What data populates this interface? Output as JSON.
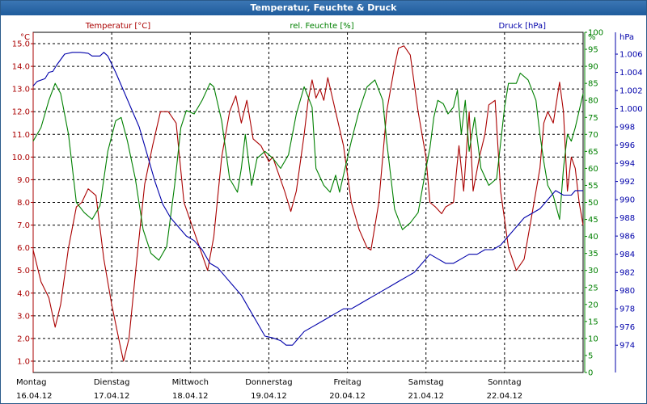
{
  "window": {
    "title": "Temperatur, Feuchte & Druck"
  },
  "chart_data": {
    "type": "line",
    "x_categories": [
      {
        "day": "Montag",
        "date": "16.04.12"
      },
      {
        "day": "Dienstag",
        "date": "17.04.12"
      },
      {
        "day": "Mittwoch",
        "date": "18.04.12"
      },
      {
        "day": "Donnerstag",
        "date": "19.04.12"
      },
      {
        "day": "Freitag",
        "date": "20.04.12"
      },
      {
        "day": "Samstag",
        "date": "21.04.12"
      },
      {
        "day": "Sonntag",
        "date": "22.04.12"
      }
    ],
    "x_range_days": [
      0,
      7
    ],
    "grid": true,
    "axes": {
      "temperature": {
        "unit": "°C",
        "min": 0.5,
        "max": 15.5,
        "ticks": [
          "1.0",
          "2.0",
          "3.0",
          "4.0",
          "5.0",
          "6.0",
          "7.0",
          "8.0",
          "9.0",
          "10.0",
          "11.0",
          "12.0",
          "13.0",
          "14.0",
          "15.0"
        ]
      },
      "humidity": {
        "unit": "%",
        "min": 0,
        "max": 100,
        "ticks": [
          "0",
          "5",
          "10",
          "15",
          "20",
          "25",
          "30",
          "35",
          "40",
          "45",
          "50",
          "55",
          "60",
          "65",
          "70",
          "75",
          "80",
          "85",
          "90",
          "95",
          "100"
        ]
      },
      "pressure": {
        "unit": "hPa",
        "min": 971.0,
        "max": 1008.4,
        "ticks": [
          "974",
          "976",
          "978",
          "980",
          "982",
          "984",
          "986",
          "988",
          "990",
          "992",
          "994",
          "996",
          "998",
          "1.000",
          "1.002",
          "1.004",
          "1.006"
        ]
      }
    },
    "series": [
      {
        "name": "Temperatur [°C]",
        "axis": "temperature",
        "color": "#aa0000",
        "points": [
          [
            0,
            5.9
          ],
          [
            0.1,
            4.5
          ],
          [
            0.2,
            3.8
          ],
          [
            0.28,
            2.5
          ],
          [
            0.35,
            3.5
          ],
          [
            0.45,
            6.0
          ],
          [
            0.55,
            7.8
          ],
          [
            0.62,
            8.0
          ],
          [
            0.7,
            8.6
          ],
          [
            0.8,
            8.3
          ],
          [
            0.9,
            5.5
          ],
          [
            1.0,
            3.5
          ],
          [
            1.1,
            1.8
          ],
          [
            1.15,
            1.0
          ],
          [
            1.22,
            2.0
          ],
          [
            1.32,
            5.5
          ],
          [
            1.42,
            8.8
          ],
          [
            1.52,
            10.5
          ],
          [
            1.62,
            12.0
          ],
          [
            1.72,
            12.0
          ],
          [
            1.82,
            11.5
          ],
          [
            1.92,
            8.0
          ],
          [
            2.02,
            7.0
          ],
          [
            2.12,
            6.0
          ],
          [
            2.22,
            5.0
          ],
          [
            2.3,
            6.5
          ],
          [
            2.4,
            10.0
          ],
          [
            2.5,
            12.0
          ],
          [
            2.58,
            12.7
          ],
          [
            2.65,
            11.5
          ],
          [
            2.72,
            12.5
          ],
          [
            2.8,
            10.8
          ],
          [
            2.9,
            10.5
          ],
          [
            3.0,
            9.8
          ],
          [
            3.05,
            10.0
          ],
          [
            3.1,
            9.5
          ],
          [
            3.2,
            8.5
          ],
          [
            3.28,
            7.6
          ],
          [
            3.35,
            8.5
          ],
          [
            3.45,
            11.0
          ],
          [
            3.5,
            12.5
          ],
          [
            3.55,
            13.4
          ],
          [
            3.6,
            12.6
          ],
          [
            3.65,
            13.0
          ],
          [
            3.7,
            12.5
          ],
          [
            3.75,
            13.5
          ],
          [
            3.85,
            12.0
          ],
          [
            3.95,
            10.5
          ],
          [
            4.05,
            8.0
          ],
          [
            4.15,
            6.8
          ],
          [
            4.25,
            6.0
          ],
          [
            4.3,
            5.9
          ],
          [
            4.4,
            8.0
          ],
          [
            4.5,
            12.0
          ],
          [
            4.6,
            14.0
          ],
          [
            4.65,
            14.8
          ],
          [
            4.72,
            14.9
          ],
          [
            4.8,
            14.5
          ],
          [
            4.9,
            12.0
          ],
          [
            5.0,
            10.0
          ],
          [
            5.05,
            8.0
          ],
          [
            5.12,
            7.8
          ],
          [
            5.2,
            7.5
          ],
          [
            5.25,
            7.8
          ],
          [
            5.35,
            8.0
          ],
          [
            5.42,
            10.5
          ],
          [
            5.48,
            8.5
          ],
          [
            5.55,
            12.0
          ],
          [
            5.6,
            8.5
          ],
          [
            5.68,
            10.0
          ],
          [
            5.75,
            11.0
          ],
          [
            5.8,
            12.3
          ],
          [
            5.88,
            12.5
          ],
          [
            5.95,
            8.5
          ],
          [
            6.05,
            6.0
          ],
          [
            6.15,
            5.0
          ],
          [
            6.25,
            5.5
          ],
          [
            6.35,
            7.5
          ],
          [
            6.45,
            9.5
          ],
          [
            6.5,
            11.5
          ],
          [
            6.55,
            12.0
          ],
          [
            6.62,
            11.5
          ],
          [
            6.7,
            13.3
          ],
          [
            6.75,
            12.0
          ],
          [
            6.8,
            8.5
          ],
          [
            6.85,
            10.0
          ],
          [
            6.9,
            9.5
          ],
          [
            6.95,
            8.0
          ],
          [
            7.0,
            7.0
          ]
        ]
      },
      {
        "name": "rel. Feuchte [%]",
        "axis": "humidity",
        "color": "#008000",
        "points": [
          [
            0,
            68
          ],
          [
            0.1,
            72
          ],
          [
            0.2,
            80
          ],
          [
            0.28,
            85
          ],
          [
            0.35,
            82
          ],
          [
            0.45,
            70
          ],
          [
            0.55,
            50
          ],
          [
            0.65,
            47
          ],
          [
            0.75,
            45
          ],
          [
            0.85,
            49
          ],
          [
            0.95,
            65
          ],
          [
            1.05,
            74
          ],
          [
            1.12,
            75
          ],
          [
            1.2,
            68
          ],
          [
            1.3,
            57
          ],
          [
            1.4,
            42
          ],
          [
            1.5,
            35
          ],
          [
            1.6,
            33
          ],
          [
            1.7,
            37
          ],
          [
            1.8,
            55
          ],
          [
            1.88,
            72
          ],
          [
            1.95,
            77
          ],
          [
            2.05,
            76
          ],
          [
            2.15,
            80
          ],
          [
            2.25,
            85
          ],
          [
            2.3,
            84
          ],
          [
            2.4,
            74
          ],
          [
            2.5,
            57
          ],
          [
            2.6,
            53
          ],
          [
            2.65,
            60
          ],
          [
            2.7,
            70
          ],
          [
            2.78,
            55
          ],
          [
            2.85,
            63
          ],
          [
            2.95,
            65
          ],
          [
            3.05,
            63
          ],
          [
            3.15,
            60
          ],
          [
            3.25,
            64
          ],
          [
            3.35,
            76
          ],
          [
            3.45,
            84
          ],
          [
            3.55,
            78
          ],
          [
            3.6,
            60
          ],
          [
            3.7,
            55
          ],
          [
            3.78,
            53
          ],
          [
            3.85,
            58
          ],
          [
            3.9,
            53
          ],
          [
            3.95,
            58
          ],
          [
            4.05,
            68
          ],
          [
            4.15,
            77
          ],
          [
            4.25,
            84
          ],
          [
            4.35,
            86
          ],
          [
            4.45,
            80
          ],
          [
            4.5,
            68
          ],
          [
            4.55,
            58
          ],
          [
            4.6,
            48
          ],
          [
            4.7,
            42
          ],
          [
            4.8,
            44
          ],
          [
            4.9,
            47
          ],
          [
            5.0,
            60
          ],
          [
            5.05,
            66
          ],
          [
            5.1,
            75
          ],
          [
            5.15,
            80
          ],
          [
            5.22,
            79
          ],
          [
            5.28,
            76
          ],
          [
            5.35,
            78
          ],
          [
            5.4,
            83
          ],
          [
            5.45,
            70
          ],
          [
            5.5,
            80
          ],
          [
            5.55,
            65
          ],
          [
            5.62,
            75
          ],
          [
            5.7,
            60
          ],
          [
            5.8,
            55
          ],
          [
            5.9,
            57
          ],
          [
            6.0,
            78
          ],
          [
            6.05,
            85
          ],
          [
            6.15,
            85
          ],
          [
            6.2,
            88
          ],
          [
            6.3,
            86
          ],
          [
            6.4,
            80
          ],
          [
            6.45,
            70
          ],
          [
            6.5,
            62
          ],
          [
            6.55,
            55
          ],
          [
            6.62,
            52
          ],
          [
            6.7,
            45
          ],
          [
            6.75,
            60
          ],
          [
            6.8,
            70
          ],
          [
            6.85,
            68
          ],
          [
            6.9,
            72
          ],
          [
            7.0,
            82
          ]
        ]
      },
      {
        "name": "Druck [hPa]",
        "axis": "pressure",
        "color": "#0000aa",
        "points": [
          [
            0,
            1002.5
          ],
          [
            0.05,
            1003.0
          ],
          [
            0.15,
            1003.3
          ],
          [
            0.2,
            1004.0
          ],
          [
            0.25,
            1004.1
          ],
          [
            0.3,
            1004.8
          ],
          [
            0.4,
            1006.0
          ],
          [
            0.5,
            1006.2
          ],
          [
            0.6,
            1006.2
          ],
          [
            0.7,
            1006.1
          ],
          [
            0.75,
            1005.8
          ],
          [
            0.85,
            1005.8
          ],
          [
            0.9,
            1006.2
          ],
          [
            0.95,
            1005.8
          ],
          [
            1.05,
            1004.0
          ],
          [
            1.15,
            1002.0
          ],
          [
            1.25,
            1000.0
          ],
          [
            1.35,
            998.0
          ],
          [
            1.45,
            995.0
          ],
          [
            1.55,
            992.0
          ],
          [
            1.65,
            989.5
          ],
          [
            1.75,
            988.0
          ],
          [
            1.85,
            987.0
          ],
          [
            1.95,
            986.0
          ],
          [
            2.05,
            985.5
          ],
          [
            2.15,
            984.5
          ],
          [
            2.25,
            983.0
          ],
          [
            2.35,
            982.5
          ],
          [
            2.45,
            981.5
          ],
          [
            2.55,
            980.5
          ],
          [
            2.65,
            979.5
          ],
          [
            2.75,
            978.0
          ],
          [
            2.85,
            976.5
          ],
          [
            2.95,
            975.0
          ],
          [
            3.05,
            974.8
          ],
          [
            3.15,
            974.5
          ],
          [
            3.22,
            974.0
          ],
          [
            3.3,
            974.0
          ],
          [
            3.35,
            974.5
          ],
          [
            3.45,
            975.5
          ],
          [
            3.55,
            976.0
          ],
          [
            3.65,
            976.5
          ],
          [
            3.75,
            977.0
          ],
          [
            3.85,
            977.5
          ],
          [
            3.95,
            978.0
          ],
          [
            4.05,
            978.0
          ],
          [
            4.15,
            978.5
          ],
          [
            4.25,
            979.0
          ],
          [
            4.35,
            979.5
          ],
          [
            4.45,
            980.0
          ],
          [
            4.55,
            980.5
          ],
          [
            4.65,
            981.0
          ],
          [
            4.75,
            981.5
          ],
          [
            4.85,
            982.0
          ],
          [
            4.95,
            983.0
          ],
          [
            5.05,
            984.0
          ],
          [
            5.15,
            983.5
          ],
          [
            5.25,
            983.0
          ],
          [
            5.35,
            983.0
          ],
          [
            5.45,
            983.5
          ],
          [
            5.55,
            984.0
          ],
          [
            5.65,
            984.0
          ],
          [
            5.75,
            984.5
          ],
          [
            5.85,
            984.5
          ],
          [
            5.95,
            985.0
          ],
          [
            6.05,
            986.0
          ],
          [
            6.15,
            987.0
          ],
          [
            6.25,
            988.0
          ],
          [
            6.35,
            988.5
          ],
          [
            6.45,
            989.0
          ],
          [
            6.55,
            990.0
          ],
          [
            6.65,
            991.0
          ],
          [
            6.75,
            990.5
          ],
          [
            6.85,
            990.5
          ],
          [
            6.9,
            991.0
          ],
          [
            7.0,
            991.0
          ]
        ]
      }
    ]
  }
}
